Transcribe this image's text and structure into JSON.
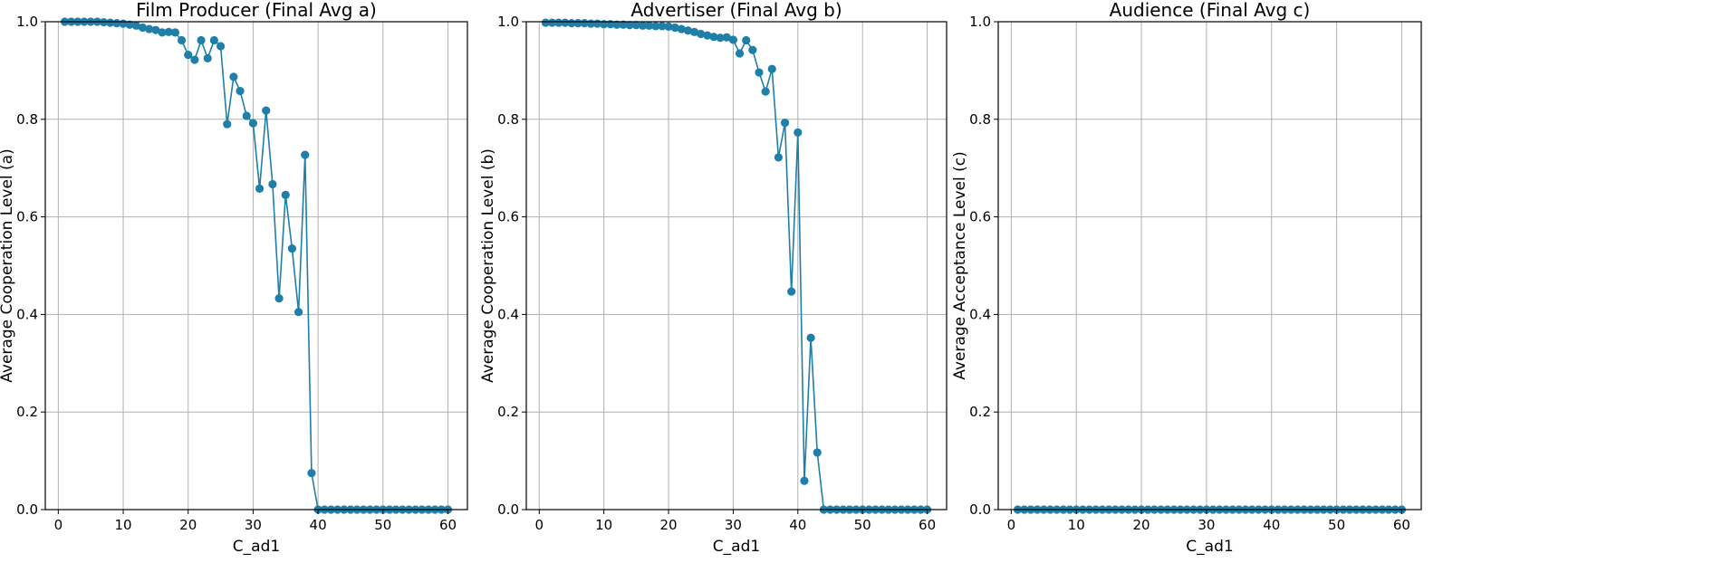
{
  "colors": {
    "series": "#1f7fa8",
    "grid": "#b0b0b0",
    "axis": "#000000",
    "background": "#ffffff"
  },
  "chart_data": [
    {
      "type": "line",
      "title": "Film Producer (Final Avg a)",
      "xlabel": "C_ad1",
      "ylabel": "Average Cooperation Level (a)",
      "xlim": [
        -2,
        63
      ],
      "ylim": [
        0,
        1
      ],
      "xticks": [
        0,
        10,
        20,
        30,
        40,
        50,
        60
      ],
      "yticks": [
        0.0,
        0.2,
        0.4,
        0.6,
        0.8,
        1.0
      ],
      "xtick_labels": [
        "0",
        "10",
        "20",
        "30",
        "40",
        "50",
        "60"
      ],
      "ytick_labels": [
        "0.0",
        "0.2",
        "0.4",
        "0.6",
        "0.8",
        "1.0"
      ],
      "grid": true,
      "marker": "circle",
      "x": [
        1,
        2,
        3,
        4,
        5,
        6,
        7,
        8,
        9,
        10,
        11,
        12,
        13,
        14,
        15,
        16,
        17,
        18,
        19,
        20,
        21,
        22,
        23,
        24,
        25,
        26,
        27,
        28,
        29,
        30,
        31,
        32,
        33,
        34,
        35,
        36,
        37,
        38,
        39,
        40,
        41,
        42,
        43,
        44,
        45,
        46,
        47,
        48,
        49,
        50,
        51,
        52,
        53,
        54,
        55,
        56,
        57,
        58,
        59,
        60
      ],
      "y": [
        1.0,
        1.0,
        1.0,
        1.0,
        1.0,
        1.0,
        0.999,
        0.998,
        0.997,
        0.996,
        0.994,
        0.992,
        0.988,
        0.985,
        0.983,
        0.978,
        0.979,
        0.978,
        0.962,
        0.932,
        0.922,
        0.962,
        0.925,
        0.962,
        0.95,
        0.79,
        0.887,
        0.858,
        0.807,
        0.792,
        0.658,
        0.818,
        0.667,
        0.433,
        0.645,
        0.535,
        0.405,
        0.727,
        0.075,
        0.0,
        0.0,
        0.0,
        0.0,
        0.0,
        0.0,
        0.0,
        0.0,
        0.0,
        0.0,
        0.0,
        0.0,
        0.0,
        0.0,
        0.0,
        0.0,
        0.0,
        0.0,
        0.0,
        0.0,
        0.0
      ]
    },
    {
      "type": "line",
      "title": "Advertiser (Final Avg b)",
      "xlabel": "C_ad1",
      "ylabel": "Average Cooperation Level (b)",
      "xlim": [
        -2,
        63
      ],
      "ylim": [
        0,
        1
      ],
      "xticks": [
        0,
        10,
        20,
        30,
        40,
        50,
        60
      ],
      "yticks": [
        0.0,
        0.2,
        0.4,
        0.6,
        0.8,
        1.0
      ],
      "xtick_labels": [
        "0",
        "10",
        "20",
        "30",
        "40",
        "50",
        "60"
      ],
      "ytick_labels": [
        "0.0",
        "0.2",
        "0.4",
        "0.6",
        "0.8",
        "1.0"
      ],
      "grid": true,
      "marker": "circle",
      "x": [
        1,
        2,
        3,
        4,
        5,
        6,
        7,
        8,
        9,
        10,
        11,
        12,
        13,
        14,
        15,
        16,
        17,
        18,
        19,
        20,
        21,
        22,
        23,
        24,
        25,
        26,
        27,
        28,
        29,
        30,
        31,
        32,
        33,
        34,
        35,
        36,
        37,
        38,
        39,
        40,
        41,
        42,
        43,
        44,
        45,
        46,
        47,
        48,
        49,
        50,
        51,
        52,
        53,
        54,
        55,
        56,
        57,
        58,
        59,
        60
      ],
      "y": [
        0.998,
        0.998,
        0.998,
        0.998,
        0.997,
        0.997,
        0.997,
        0.996,
        0.996,
        0.995,
        0.995,
        0.994,
        0.994,
        0.993,
        0.993,
        0.992,
        0.992,
        0.991,
        0.991,
        0.99,
        0.988,
        0.985,
        0.982,
        0.979,
        0.975,
        0.972,
        0.969,
        0.967,
        0.968,
        0.963,
        0.935,
        0.962,
        0.942,
        0.896,
        0.857,
        0.903,
        0.722,
        0.793,
        0.447,
        0.773,
        0.059,
        0.352,
        0.117,
        0.0,
        0.0,
        0.0,
        0.0,
        0.0,
        0.0,
        0.0,
        0.0,
        0.0,
        0.0,
        0.0,
        0.0,
        0.0,
        0.0,
        0.0,
        0.0,
        0.0
      ]
    },
    {
      "type": "line",
      "title": "Audience (Final Avg c)",
      "xlabel": "C_ad1",
      "ylabel": "Average Acceptance Level (c)",
      "xlim": [
        -2,
        63
      ],
      "ylim": [
        0,
        1
      ],
      "xticks": [
        0,
        10,
        20,
        30,
        40,
        50,
        60
      ],
      "yticks": [
        0.0,
        0.2,
        0.4,
        0.6,
        0.8,
        1.0
      ],
      "xtick_labels": [
        "0",
        "10",
        "20",
        "30",
        "40",
        "50",
        "60"
      ],
      "ytick_labels": [
        "0.0",
        "0.2",
        "0.4",
        "0.6",
        "0.8",
        "1.0"
      ],
      "grid": true,
      "marker": "circle",
      "x": [
        1,
        2,
        3,
        4,
        5,
        6,
        7,
        8,
        9,
        10,
        11,
        12,
        13,
        14,
        15,
        16,
        17,
        18,
        19,
        20,
        21,
        22,
        23,
        24,
        25,
        26,
        27,
        28,
        29,
        30,
        31,
        32,
        33,
        34,
        35,
        36,
        37,
        38,
        39,
        40,
        41,
        42,
        43,
        44,
        45,
        46,
        47,
        48,
        49,
        50,
        51,
        52,
        53,
        54,
        55,
        56,
        57,
        58,
        59,
        60
      ],
      "y": [
        0.0,
        0.0,
        0.0,
        0.0,
        0.0,
        0.0,
        0.0,
        0.0,
        0.0,
        0.0,
        0.0,
        0.0,
        0.0,
        0.0,
        0.0,
        0.0,
        0.0,
        0.0,
        0.0,
        0.0,
        0.0,
        0.0,
        0.0,
        0.0,
        0.0,
        0.0,
        0.0,
        0.0,
        0.0,
        0.0,
        0.0,
        0.0,
        0.0,
        0.0,
        0.0,
        0.0,
        0.0,
        0.0,
        0.0,
        0.0,
        0.0,
        0.0,
        0.0,
        0.0,
        0.0,
        0.0,
        0.0,
        0.0,
        0.0,
        0.0,
        0.0,
        0.0,
        0.0,
        0.0,
        0.0,
        0.0,
        0.0,
        0.0,
        0.0,
        0.0
      ]
    }
  ]
}
